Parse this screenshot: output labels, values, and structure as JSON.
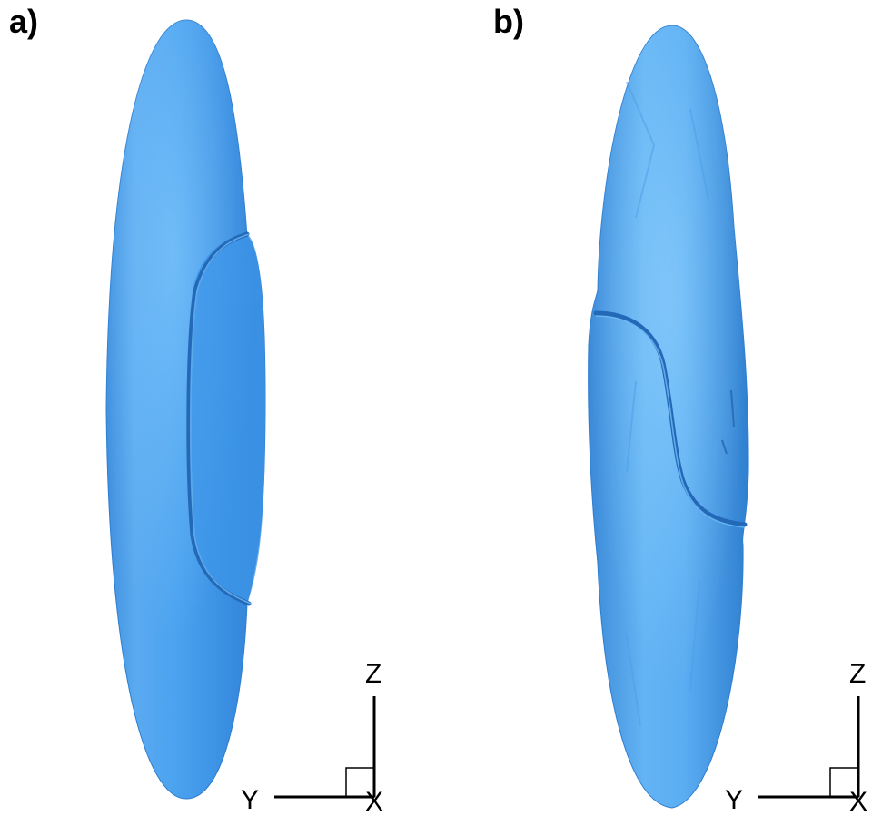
{
  "panels": [
    {
      "label": "a)",
      "axis": {
        "vertical": "Z",
        "horizontal": "Y",
        "normal": "X"
      }
    },
    {
      "label": "b)",
      "axis": {
        "vertical": "Z",
        "horizontal": "Y",
        "normal": "X"
      }
    }
  ],
  "colors": {
    "surface": "#3a93e6",
    "surface_light": "#7cc4f8",
    "surface_dark": "#2a6fb8",
    "crease": "#2a72c4",
    "background": "#ffffff",
    "axis": "#000000"
  }
}
